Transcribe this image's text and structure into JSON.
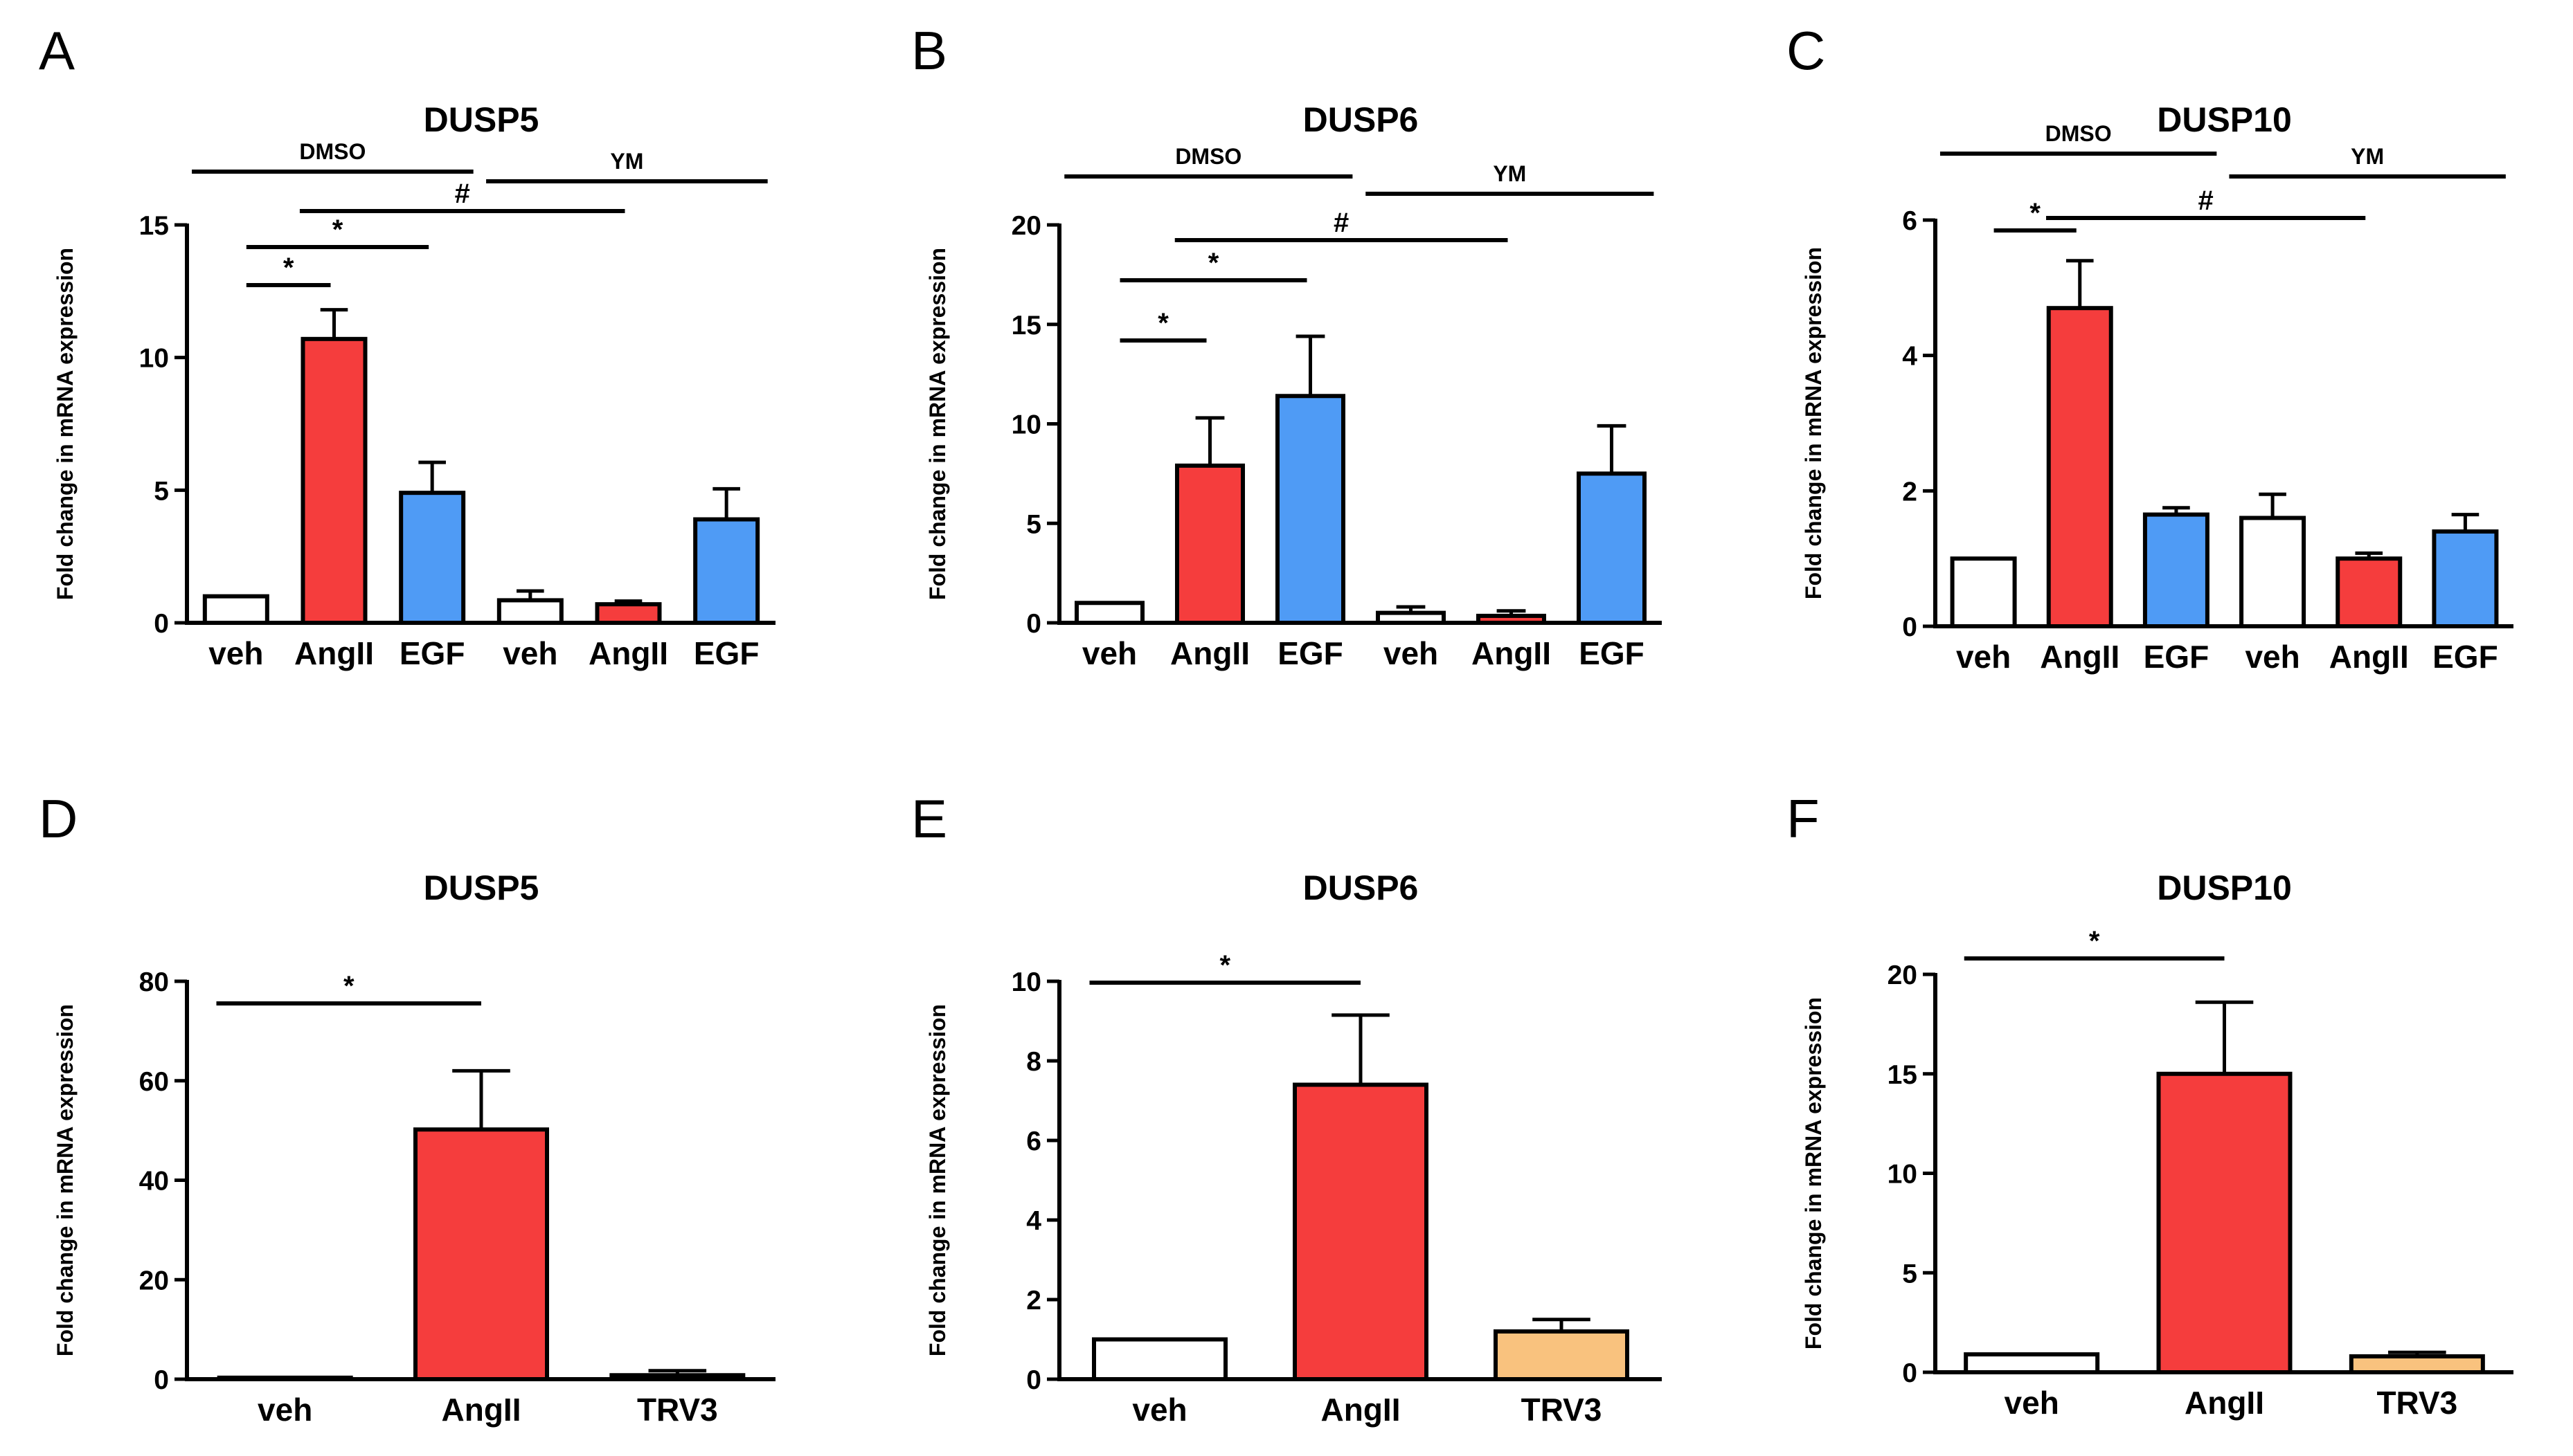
{
  "colors": {
    "veh": "#ffffff",
    "AngII": "#f53d3d",
    "EGF": "#4f9bf5",
    "TRV3": "#f9c27e",
    "stroke": "#000000"
  },
  "chart_data": [
    {
      "panel": "A",
      "type": "bar",
      "title": "DUSP5",
      "ylabel": "Fold change in mRNA expression",
      "xlabel": "",
      "ylim": [
        0,
        15
      ],
      "yticks": [
        0,
        5,
        10,
        15
      ],
      "categories": [
        "veh",
        "AngII",
        "EGF",
        "veh",
        "AngII",
        "EGF"
      ],
      "fills": [
        "veh",
        "AngII",
        "EGF",
        "veh",
        "AngII",
        "EGF"
      ],
      "values": [
        1.0,
        10.7,
        4.9,
        0.85,
        0.7,
        3.9
      ],
      "errors": [
        0.0,
        1.1,
        1.15,
        0.35,
        0.12,
        1.15
      ],
      "groups": [
        {
          "label": "DMSO",
          "from": 0,
          "to": 2
        },
        {
          "label": "YM",
          "from": 3,
          "to": 5
        }
      ],
      "sig": [
        {
          "from": 0,
          "to": 1,
          "label": "*"
        },
        {
          "from": 0,
          "to": 2,
          "label": "*"
        },
        {
          "from": 1,
          "to": 4,
          "label": "#"
        }
      ]
    },
    {
      "panel": "B",
      "type": "bar",
      "title": "DUSP6",
      "ylabel": "Fold change in mRNA expression",
      "xlabel": "",
      "ylim": [
        0,
        20
      ],
      "yticks": [
        0,
        5,
        10,
        15,
        20
      ],
      "categories": [
        "veh",
        "AngII",
        "EGF",
        "veh",
        "AngII",
        "EGF"
      ],
      "fills": [
        "veh",
        "AngII",
        "EGF",
        "veh",
        "AngII",
        "EGF"
      ],
      "values": [
        1.0,
        7.9,
        11.4,
        0.5,
        0.35,
        7.5
      ],
      "errors": [
        0.0,
        2.4,
        3.0,
        0.3,
        0.25,
        2.4
      ],
      "groups": [
        {
          "label": "DMSO",
          "from": 0,
          "to": 2
        },
        {
          "label": "YM",
          "from": 3,
          "to": 5
        }
      ],
      "sig": [
        {
          "from": 0,
          "to": 1,
          "label": "*"
        },
        {
          "from": 0,
          "to": 2,
          "label": "*"
        },
        {
          "from": 1,
          "to": 4,
          "label": "#"
        }
      ]
    },
    {
      "panel": "C",
      "type": "bar",
      "title": "DUSP10",
      "ylabel": "Fold change in mRNA expression",
      "xlabel": "",
      "ylim": [
        0,
        6
      ],
      "yticks": [
        0,
        2,
        4,
        6
      ],
      "categories": [
        "veh",
        "AngII",
        "EGF",
        "veh",
        "AngII",
        "EGF"
      ],
      "fills": [
        "veh",
        "AngII",
        "EGF",
        "veh",
        "AngII",
        "EGF"
      ],
      "values": [
        1.0,
        4.7,
        1.65,
        1.6,
        1.0,
        1.4
      ],
      "errors": [
        0.0,
        0.7,
        0.1,
        0.35,
        0.08,
        0.25
      ],
      "groups": [
        {
          "label": "DMSO",
          "from": 0,
          "to": 2
        },
        {
          "label": "YM",
          "from": 3,
          "to": 5
        }
      ],
      "sig": [
        {
          "from": 0,
          "to": 1,
          "label": "*"
        },
        {
          "from": 1,
          "to": 4,
          "label": "#"
        }
      ]
    },
    {
      "panel": "D",
      "type": "bar",
      "title": "DUSP5",
      "ylabel": "Fold change in mRNA expression",
      "xlabel": "",
      "ylim": [
        0,
        80
      ],
      "yticks": [
        0,
        20,
        40,
        60,
        80
      ],
      "categories": [
        "veh",
        "AngII",
        "TRV3"
      ],
      "fills": [
        "veh",
        "AngII",
        "TRV3"
      ],
      "values": [
        0.3,
        50.2,
        0.8
      ],
      "errors": [
        0.0,
        11.8,
        0.9
      ],
      "groups": [],
      "sig": [
        {
          "from": 0,
          "to": 1,
          "label": "*"
        }
      ]
    },
    {
      "panel": "E",
      "type": "bar",
      "title": "DUSP6",
      "ylabel": "Fold change in mRNA expression",
      "xlabel": "",
      "ylim": [
        0,
        10
      ],
      "yticks": [
        0,
        2,
        4,
        6,
        8,
        10
      ],
      "categories": [
        "veh",
        "AngII",
        "TRV3"
      ],
      "fills": [
        "veh",
        "AngII",
        "TRV3"
      ],
      "values": [
        1.0,
        7.4,
        1.2
      ],
      "errors": [
        0.0,
        1.75,
        0.3
      ],
      "groups": [],
      "sig": [
        {
          "from": 0,
          "to": 1,
          "label": "*"
        }
      ]
    },
    {
      "panel": "F",
      "type": "bar",
      "title": "DUSP10",
      "ylabel": "Fold change in mRNA expression",
      "xlabel": "",
      "ylim": [
        0,
        20
      ],
      "yticks": [
        0,
        5,
        10,
        15,
        20
      ],
      "categories": [
        "veh",
        "AngII",
        "TRV3"
      ],
      "fills": [
        "veh",
        "AngII",
        "TRV3"
      ],
      "values": [
        0.9,
        15.0,
        0.8
      ],
      "errors": [
        0.0,
        3.6,
        0.2
      ],
      "groups": [],
      "sig": [
        {
          "from": 0,
          "to": 1,
          "label": "*"
        }
      ]
    }
  ]
}
